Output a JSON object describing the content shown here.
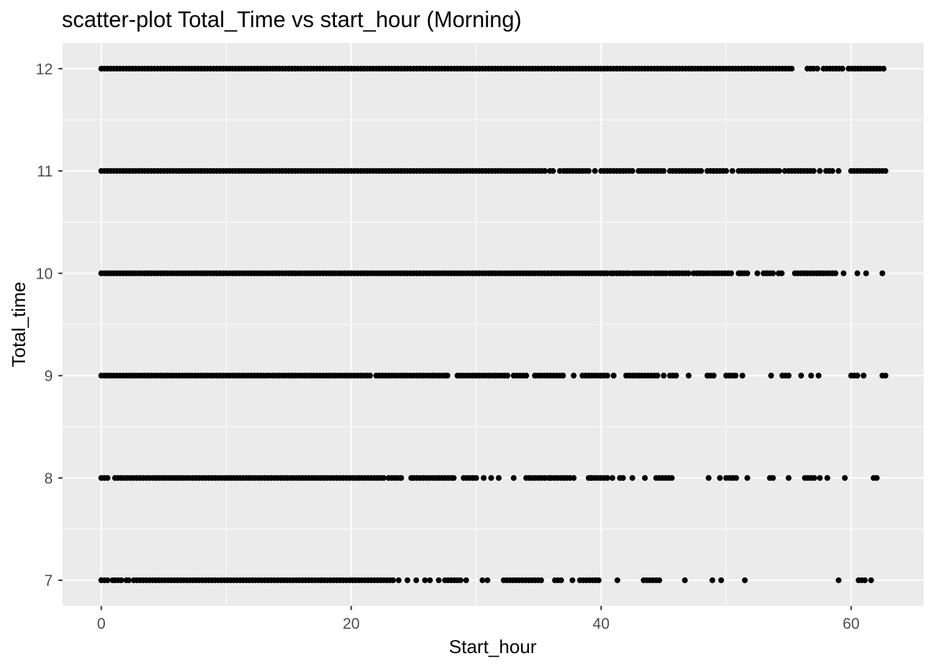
{
  "chart_data": {
    "type": "scatter",
    "title": "scatter-plot Total_Time vs start_hour (Morning)",
    "xlabel": "Start_hour",
    "ylabel": "Total_time",
    "xlim": [
      -3.1,
      65.8
    ],
    "ylim": [
      6.75,
      12.25
    ],
    "x_ticks": [
      0,
      20,
      40,
      60
    ],
    "y_ticks": [
      7,
      8,
      9,
      10,
      11,
      12
    ],
    "grid": true,
    "legend": "none",
    "colors": {
      "panel": "#ebebeb",
      "grid": "#ffffff",
      "point": "#000000",
      "tick_text": "#4d4d4d"
    },
    "series": [
      {
        "values": [
          {
            "y": 12,
            "segments": [
              [
                0,
                55.4
              ],
              [
                56.5,
                57.0
              ],
              [
                57.8,
                59.3
              ],
              [
                59.8,
                62.5
              ]
            ],
            "points": [
              57.3,
              62.6
            ]
          },
          {
            "y": 11,
            "segments": [
              [
                0,
                35.5
              ],
              [
                35.9,
                36.3
              ],
              [
                37.0,
                39.0
              ],
              [
                40.0,
                42.5
              ],
              [
                43.0,
                45.0
              ],
              [
                45.5,
                48.0
              ],
              [
                48.5,
                50.0
              ],
              [
                51.0,
                54.3
              ],
              [
                55.0,
                57.0
              ],
              [
                58.0,
                58.5
              ],
              [
                60.0,
                62.8
              ]
            ],
            "points": [
              36.7,
              39.5,
              49.0,
              50.5,
              54.7,
              57.5,
              59.0
            ]
          },
          {
            "y": 10,
            "segments": [
              [
                0,
                40.5
              ],
              [
                41.0,
                42.0
              ],
              [
                42.5,
                44.0
              ],
              [
                44.5,
                45.0
              ],
              [
                45.5,
                47.0
              ],
              [
                47.4,
                50.5
              ],
              [
                51.2,
                51.9
              ],
              [
                53.0,
                53.8
              ],
              [
                54.2,
                54.6
              ],
              [
                55.5,
                58.9
              ]
            ],
            "points": [
              40.8,
              42.2,
              44.3,
              45.2,
              51.0,
              52.5,
              59.4,
              60.5,
              61.2,
              62.5
            ]
          },
          {
            "y": 9,
            "segments": [
              [
                0,
                19.8
              ],
              [
                20.0,
                21.6
              ],
              [
                22.0,
                27.5
              ],
              [
                28.5,
                32.5
              ],
              [
                33.0,
                34.0
              ],
              [
                34.7,
                37.0
              ],
              [
                38.5,
                40.5
              ],
              [
                42.0,
                44.5
              ],
              [
                45.5,
                46.2
              ],
              [
                48.5,
                49.2
              ],
              [
                50.0,
                50.8
              ],
              [
                54.5,
                55.0
              ],
              [
                60.0,
                60.6
              ],
              [
                62.5,
                62.8
              ]
            ],
            "points": [
              26.5,
              27.7,
              37.8,
              41.0,
              45.0,
              47.0,
              51.3,
              53.6,
              56.0,
              56.8,
              57.4,
              61.0
            ]
          },
          {
            "y": 8,
            "segments": [
              [
                0,
                0.6
              ],
              [
                1.1,
                22.8
              ],
              [
                23.0,
                24.2
              ],
              [
                25.0,
                28.0
              ],
              [
                29.0,
                30.0
              ],
              [
                34.0,
                35.5
              ],
              [
                36.0,
                37.5
              ],
              [
                39.0,
                40.6
              ],
              [
                41.5,
                41.9
              ],
              [
                44.4,
                45.8
              ],
              [
                50.3,
                51.0
              ],
              [
                53.5,
                53.9
              ],
              [
                56.3,
                57.2
              ],
              [
                61.8,
                62.1
              ]
            ],
            "points": [
              24.8,
              28.2,
              30.6,
              31.2,
              31.8,
              33.0,
              35.8,
              37.8,
              39.2,
              40.9,
              42.5,
              43.5,
              48.6,
              49.5,
              50.0,
              51.7,
              55.0,
              57.5,
              58.1,
              59.5
            ]
          },
          {
            "y": 7,
            "segments": [
              [
                0,
                0.7
              ],
              [
                1.1,
                1.7
              ],
              [
                2.6,
                23.5
              ],
              [
                27.5,
                28.9
              ],
              [
                32.2,
                35.3
              ],
              [
                36.3,
                36.8
              ],
              [
                38.3,
                40.0
              ],
              [
                43.4,
                44.8
              ],
              [
                60.6,
                61.1
              ]
            ],
            "points": [
              0.9,
              2.0,
              2.2,
              23.8,
              24.5,
              25.2,
              25.9,
              26.3,
              27.0,
              29.2,
              30.5,
              30.9,
              37.7,
              41.3,
              46.7,
              48.9,
              49.6,
              51.5,
              59.0,
              61.6
            ]
          }
        ]
      }
    ]
  }
}
